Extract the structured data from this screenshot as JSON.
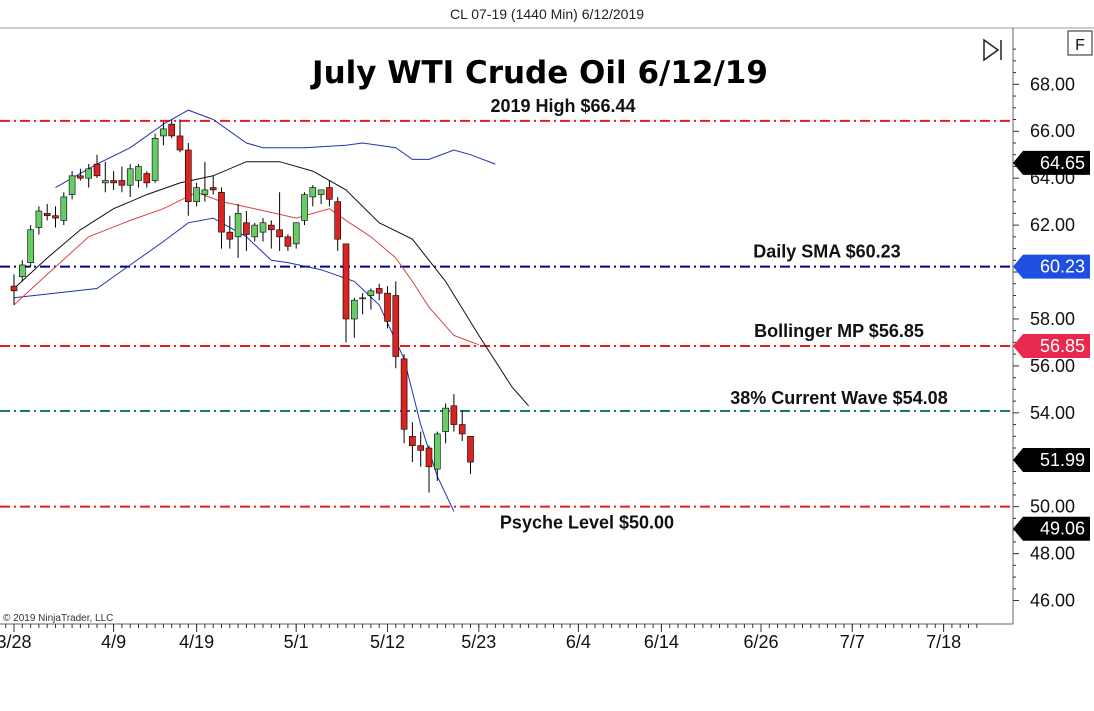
{
  "header": {
    "text": "CL 07-19 (1440 Min)  6/12/2019"
  },
  "buttons": {
    "scroll_end_icon": "skip-to-end-icon",
    "f_label": "F"
  },
  "copyright": "© 2019 NinjaTrader, LLC",
  "chart_data": {
    "type": "candlestick",
    "title": "July WTI Crude Oil 6/12/19",
    "ylim": [
      45.0,
      70.4
    ],
    "y_ticks": [
      "46.00",
      "48.00",
      "50.00",
      "52.00",
      "54.00",
      "56.00",
      "58.00",
      "60.00",
      "62.00",
      "64.00",
      "66.00",
      "68.00"
    ],
    "x_tick_labels": [
      {
        "label": "3/28",
        "day": 0
      },
      {
        "label": "4/9",
        "day": 12
      },
      {
        "label": "4/19",
        "day": 22
      },
      {
        "label": "5/1",
        "day": 34
      },
      {
        "label": "5/12",
        "day": 45
      },
      {
        "label": "5/23",
        "day": 56
      },
      {
        "label": "6/4",
        "day": 68
      },
      {
        "label": "6/14",
        "day": 78
      },
      {
        "label": "6/26",
        "day": 90
      },
      {
        "label": "7/7",
        "day": 101
      },
      {
        "label": "7/18",
        "day": 112
      }
    ],
    "xlim_days": [
      -1,
      116
    ],
    "candles": [
      {
        "day": 0,
        "o": 59.4,
        "h": 59.9,
        "l": 58.6,
        "c": 59.2
      },
      {
        "day": 1,
        "o": 59.8,
        "h": 60.5,
        "l": 59.6,
        "c": 60.3
      },
      {
        "day": 2,
        "o": 60.4,
        "h": 62.0,
        "l": 60.2,
        "c": 61.8
      },
      {
        "day": 3,
        "o": 61.9,
        "h": 62.8,
        "l": 61.6,
        "c": 62.6
      },
      {
        "day": 4,
        "o": 62.5,
        "h": 62.9,
        "l": 62.2,
        "c": 62.4
      },
      {
        "day": 5,
        "o": 62.4,
        "h": 62.8,
        "l": 61.9,
        "c": 62.3
      },
      {
        "day": 6,
        "o": 62.2,
        "h": 63.4,
        "l": 62.0,
        "c": 63.2
      },
      {
        "day": 7,
        "o": 63.3,
        "h": 64.3,
        "l": 63.1,
        "c": 64.1
      },
      {
        "day": 8,
        "o": 64.1,
        "h": 64.4,
        "l": 63.9,
        "c": 64.0
      },
      {
        "day": 9,
        "o": 64.0,
        "h": 64.6,
        "l": 63.6,
        "c": 64.4
      },
      {
        "day": 10,
        "o": 64.6,
        "h": 65.0,
        "l": 64.0,
        "c": 64.1
      },
      {
        "day": 11,
        "o": 63.8,
        "h": 64.7,
        "l": 63.4,
        "c": 63.9
      },
      {
        "day": 12,
        "o": 63.9,
        "h": 64.3,
        "l": 63.5,
        "c": 63.8
      },
      {
        "day": 13,
        "o": 63.9,
        "h": 64.5,
        "l": 63.4,
        "c": 63.7
      },
      {
        "day": 14,
        "o": 63.7,
        "h": 64.6,
        "l": 63.2,
        "c": 64.4
      },
      {
        "day": 15,
        "o": 63.9,
        "h": 64.6,
        "l": 63.6,
        "c": 64.5
      },
      {
        "day": 16,
        "o": 64.2,
        "h": 64.3,
        "l": 63.6,
        "c": 63.8
      },
      {
        "day": 17,
        "o": 63.9,
        "h": 65.9,
        "l": 63.8,
        "c": 65.7
      },
      {
        "day": 18,
        "o": 65.8,
        "h": 66.4,
        "l": 65.4,
        "c": 66.1
      },
      {
        "day": 19,
        "o": 66.3,
        "h": 66.5,
        "l": 65.7,
        "c": 65.8
      },
      {
        "day": 20,
        "o": 65.8,
        "h": 66.5,
        "l": 65.1,
        "c": 65.2
      },
      {
        "day": 21,
        "o": 65.2,
        "h": 65.5,
        "l": 62.4,
        "c": 63.0
      },
      {
        "day": 22,
        "o": 63.0,
        "h": 63.8,
        "l": 62.8,
        "c": 63.6
      },
      {
        "day": 23,
        "o": 63.3,
        "h": 64.7,
        "l": 63.0,
        "c": 63.5
      },
      {
        "day": 24,
        "o": 63.6,
        "h": 64.1,
        "l": 63.3,
        "c": 63.5
      },
      {
        "day": 25,
        "o": 63.4,
        "h": 63.6,
        "l": 61.0,
        "c": 61.7
      },
      {
        "day": 26,
        "o": 61.7,
        "h": 62.4,
        "l": 61.0,
        "c": 61.4
      },
      {
        "day": 27,
        "o": 61.5,
        "h": 62.9,
        "l": 60.6,
        "c": 62.5
      },
      {
        "day": 28,
        "o": 62.1,
        "h": 62.6,
        "l": 60.9,
        "c": 61.6
      },
      {
        "day": 29,
        "o": 61.5,
        "h": 62.1,
        "l": 61.3,
        "c": 62.0
      },
      {
        "day": 30,
        "o": 61.7,
        "h": 62.3,
        "l": 61.3,
        "c": 62.1
      },
      {
        "day": 31,
        "o": 62.0,
        "h": 62.2,
        "l": 61.0,
        "c": 61.8
      },
      {
        "day": 32,
        "o": 61.8,
        "h": 63.4,
        "l": 60.9,
        "c": 61.5
      },
      {
        "day": 33,
        "o": 61.5,
        "h": 61.6,
        "l": 60.9,
        "c": 61.1
      },
      {
        "day": 34,
        "o": 61.2,
        "h": 62.1,
        "l": 61.0,
        "c": 62.1
      },
      {
        "day": 35,
        "o": 62.2,
        "h": 63.4,
        "l": 62.0,
        "c": 63.3
      },
      {
        "day": 36,
        "o": 63.2,
        "h": 63.7,
        "l": 62.8,
        "c": 63.6
      },
      {
        "day": 37,
        "o": 63.3,
        "h": 63.5,
        "l": 62.9,
        "c": 63.5
      },
      {
        "day": 38,
        "o": 63.6,
        "h": 63.9,
        "l": 62.8,
        "c": 63.1
      },
      {
        "day": 39,
        "o": 63.0,
        "h": 63.2,
        "l": 60.9,
        "c": 61.4
      },
      {
        "day": 40,
        "o": 61.2,
        "h": 61.2,
        "l": 57.0,
        "c": 58.0
      },
      {
        "day": 41,
        "o": 58.0,
        "h": 58.9,
        "l": 57.2,
        "c": 58.8
      },
      {
        "day": 42,
        "o": 58.9,
        "h": 59.1,
        "l": 58.2,
        "c": 58.9
      },
      {
        "day": 43,
        "o": 59.0,
        "h": 59.3,
        "l": 58.4,
        "c": 59.2
      },
      {
        "day": 44,
        "o": 59.3,
        "h": 59.5,
        "l": 58.8,
        "c": 59.1
      },
      {
        "day": 45,
        "o": 59.1,
        "h": 59.4,
        "l": 57.6,
        "c": 57.9
      },
      {
        "day": 46,
        "o": 59.0,
        "h": 59.6,
        "l": 55.9,
        "c": 56.4
      },
      {
        "day": 47,
        "o": 56.3,
        "h": 56.5,
        "l": 52.7,
        "c": 53.3
      },
      {
        "day": 48,
        "o": 53.0,
        "h": 53.6,
        "l": 51.9,
        "c": 52.6
      },
      {
        "day": 49,
        "o": 52.6,
        "h": 53.2,
        "l": 51.7,
        "c": 52.4
      },
      {
        "day": 50,
        "o": 52.5,
        "h": 52.6,
        "l": 50.6,
        "c": 51.7
      },
      {
        "day": 51,
        "o": 51.6,
        "h": 53.2,
        "l": 51.1,
        "c": 53.1
      },
      {
        "day": 52,
        "o": 53.2,
        "h": 54.4,
        "l": 52.7,
        "c": 54.2
      },
      {
        "day": 53,
        "o": 54.3,
        "h": 54.8,
        "l": 53.2,
        "c": 53.5
      },
      {
        "day": 54,
        "o": 53.5,
        "h": 54.1,
        "l": 52.8,
        "c": 53.1
      },
      {
        "day": 55,
        "o": 53.0,
        "h": 53.0,
        "l": 51.4,
        "c": 51.9
      }
    ],
    "bollinger_upper": [
      [
        5,
        63.6
      ],
      [
        10,
        64.6
      ],
      [
        14,
        65.3
      ],
      [
        18,
        66.3
      ],
      [
        21,
        66.9
      ],
      [
        24,
        66.5
      ],
      [
        28,
        65.5
      ],
      [
        30,
        65.3
      ],
      [
        35,
        65.3
      ],
      [
        40,
        65.4
      ],
      [
        42,
        65.5
      ],
      [
        46,
        65.3
      ],
      [
        48,
        64.8
      ],
      [
        50,
        64.8
      ],
      [
        53,
        65.2
      ],
      [
        55,
        65.0
      ],
      [
        58,
        64.6
      ]
    ],
    "bollinger_lower": [
      [
        0,
        58.9
      ],
      [
        5,
        59.1
      ],
      [
        10,
        59.3
      ],
      [
        14,
        60.3
      ],
      [
        18,
        61.3
      ],
      [
        21,
        62.1
      ],
      [
        24,
        62.3
      ],
      [
        28,
        61.5
      ],
      [
        31,
        60.5
      ],
      [
        33,
        60.4
      ],
      [
        37,
        60.1
      ],
      [
        41,
        59.6
      ],
      [
        44,
        58.6
      ],
      [
        47,
        56.3
      ],
      [
        49,
        53.5
      ],
      [
        51,
        51.3
      ],
      [
        53,
        49.8
      ]
    ],
    "bollinger_mid": [
      [
        0,
        58.6
      ],
      [
        4,
        59.9
      ],
      [
        9,
        61.5
      ],
      [
        14,
        62.2
      ],
      [
        18,
        62.7
      ],
      [
        22,
        63.4
      ],
      [
        25,
        63.0
      ],
      [
        29,
        62.7
      ],
      [
        34,
        62.3
      ],
      [
        38,
        62.7
      ],
      [
        40,
        62.2
      ],
      [
        43,
        61.5
      ],
      [
        46,
        60.6
      ],
      [
        48,
        59.6
      ],
      [
        50,
        58.5
      ],
      [
        53,
        57.3
      ],
      [
        56,
        56.9
      ]
    ],
    "sma": [
      [
        0,
        59.3
      ],
      [
        4,
        60.6
      ],
      [
        8,
        61.8
      ],
      [
        12,
        62.7
      ],
      [
        16,
        63.3
      ],
      [
        20,
        63.8
      ],
      [
        24,
        64.1
      ],
      [
        28,
        64.7
      ],
      [
        32,
        64.7
      ],
      [
        36,
        64.3
      ],
      [
        40,
        63.5
      ],
      [
        44,
        62.1
      ],
      [
        48,
        61.4
      ],
      [
        52,
        59.6
      ],
      [
        56,
        57.3
      ],
      [
        60,
        55.1
      ],
      [
        62,
        54.3
      ]
    ],
    "levels": [
      {
        "value": 66.44,
        "label": "2019 High $66.44",
        "color": "#e02020",
        "style": "dashdot"
      },
      {
        "value": 60.23,
        "label": "Daily SMA $60.23",
        "color": "#00008b",
        "style": "dashdot"
      },
      {
        "value": 56.85,
        "label": "Bollinger MP $56.85",
        "color": "#e02020",
        "style": "dashdot"
      },
      {
        "value": 54.08,
        "label": "38% Current Wave $54.08",
        "color": "#1a7a7a",
        "style": "dashdot"
      },
      {
        "value": 50.0,
        "label": "Psyche Level $50.00",
        "color": "#e02020",
        "style": "dashdot"
      }
    ],
    "price_tags": [
      {
        "value": 64.65,
        "label": "64.65",
        "bg": "#000000",
        "fg": "#ffffff"
      },
      {
        "value": 60.23,
        "label": "60.23",
        "bg": "#1f4fe0",
        "fg": "#ffffff"
      },
      {
        "value": 56.85,
        "label": "56.85",
        "bg": "#e8294d",
        "fg": "#ffffff"
      },
      {
        "value": 51.99,
        "label": "51.99",
        "bg": "#000000",
        "fg": "#ffffff"
      },
      {
        "value": 49.06,
        "label": "49.06",
        "bg": "#000000",
        "fg": "#ffffff"
      }
    ],
    "colors": {
      "up": "#66cc66",
      "down": "#dd2222",
      "wick": "#000000",
      "bb_outer": "#2233aa",
      "bb_mid": "#dd4444",
      "sma": "#111111"
    }
  }
}
